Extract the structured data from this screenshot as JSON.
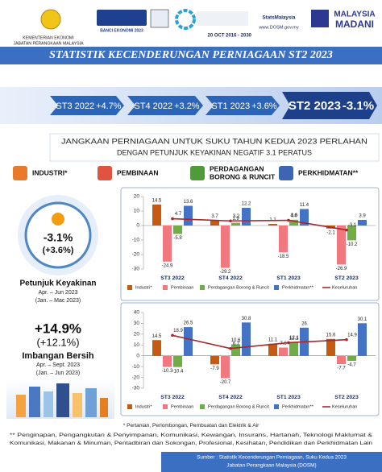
{
  "header": {
    "ministry": "KEMENTERIAN EKONOMI",
    "department": "JABATAN PERANGKAAN MALAYSIA",
    "census": "BANCI EKONOMI 2023",
    "social": "StatsMalaysia",
    "website": "www.DOSM.gov.my",
    "day": "20 OCT",
    "sdg_period": "2016 - 2030",
    "brand_top": "MALAYSIA",
    "brand_bottom": "MADANI"
  },
  "title": "STATISTIK KECENDERUNGAN PERNIAGAAN ST2 2023",
  "banner": [
    {
      "period": "ST3 2022",
      "value": "+4.7%"
    },
    {
      "period": "ST4 2022",
      "value": "+3.2%"
    },
    {
      "period": "ST1 2023",
      "value": "+3.6%"
    },
    {
      "period": "ST2 2023",
      "value": "-3.1%"
    }
  ],
  "subtitle_lines": [
    "JANGKAAN PERNIAGAAN UNTUK SUKU TAHUN KEDUA 2023 PERLAHAN",
    "DENGAN PETUNJUK KEYAKINAN NEGATIF 3.1 PERATUS"
  ],
  "sectors": [
    {
      "lines": [
        "INDUSTRI*"
      ]
    },
    {
      "lines": [
        "PEMBINAAN"
      ]
    },
    {
      "lines": [
        "PERDAGANGAN",
        "BORONG & RUNCIT"
      ]
    },
    {
      "lines": [
        "PERKHIDMATAN**"
      ]
    }
  ],
  "indicators": [
    {
      "value": "-3.1%",
      "previous": "(+3.6%)",
      "label": "Petunjuk Keyakinan",
      "period": "Apr. – Jun 2023",
      "previous_period": "(Jan. – Mac 2023)"
    },
    {
      "value": "+14.9%",
      "previous": "(+12.1%)",
      "label": "Imbangan Bersih",
      "period": "Apr. – Sept. 2023",
      "previous_period": "(Jan. – Jun 2023)"
    }
  ],
  "chart_data": [
    {
      "type": "bar",
      "categories": [
        "ST3 2022",
        "ST4 2022",
        "ST1 2023",
        "ST2 2023"
      ],
      "ylim": [
        -30,
        20
      ],
      "yticks": [
        -30,
        -20,
        -10,
        0,
        10,
        20
      ],
      "series": [
        {
          "name": "Industri*",
          "color": "#c55a11",
          "values": [
            14.5,
            3.7,
            1.1,
            -2.1
          ]
        },
        {
          "name": "Pembinaan",
          "color": "#f2787f",
          "values": [
            -24.9,
            -29.2,
            -18.5,
            -26.9
          ]
        },
        {
          "name": "Perdagangan Borong & Runcit",
          "color": "#70ad47",
          "values": [
            -5.8,
            1.9,
            4.0,
            -10.2
          ],
          "value_labels": [
            "-5.8",
            "1.9",
            "4.0",
            "-10.2"
          ]
        },
        {
          "name": "Perkhidmatan**",
          "color": "#4472c4",
          "values": [
            13.6,
            12.2,
            11.4,
            3.9
          ]
        },
        {
          "name": "Keseluruhan",
          "color": "#a5292a",
          "type": "line",
          "values": [
            4.7,
            3.2,
            3.6,
            -3.1
          ]
        }
      ]
    },
    {
      "type": "bar",
      "categories": [
        "ST3 2022",
        "ST4 2022",
        "ST1 2023",
        "ST2 2023"
      ],
      "ylim": [
        -30,
        40
      ],
      "yticks": [
        -30,
        -20,
        -10,
        0,
        10,
        20,
        30,
        40
      ],
      "series": [
        {
          "name": "Industri*",
          "color": "#c55a11",
          "values": [
            14.5,
            -7.9,
            11.1,
            15.6
          ]
        },
        {
          "name": "Pembinaan",
          "color": "#f2787f",
          "values": [
            -10.3,
            -20.7,
            7.6,
            -7.7
          ]
        },
        {
          "name": "Perdagangan Borong & Runcit",
          "color": "#70ad47",
          "values": [
            -10.4,
            10.6,
            12.1,
            -4.7
          ]
        },
        {
          "name": "Perkhidmatan**",
          "color": "#4472c4",
          "values": [
            26.5,
            30.8,
            26,
            30.1
          ]
        },
        {
          "name": "Keseluruhan",
          "color": "#a5292a",
          "type": "line",
          "values": [
            18.9,
            6.7,
            12.1,
            14.9
          ]
        }
      ]
    }
  ],
  "footnotes": [
    "* Pertanian, Perlombongan, Pembuatan dan Elektrik & Air",
    "** Penginapan, Pengangkutan & Penyimpanan, Komunikasi, Kewangan, Insurans, Hartanah, Teknologi Maklumat &",
    "Komunikasi, Makanan & Minuman, Pentadbiran dan Sokongan, Profesional, Kesihatan, Pendidikan dan Perkhidmatan Lain"
  ],
  "source": [
    "Sumber : Statistik Kecenderungan Perniagaan, Suku Kedua 2023",
    "Jabatan Perangkaan Malaysia (DOSM)"
  ]
}
